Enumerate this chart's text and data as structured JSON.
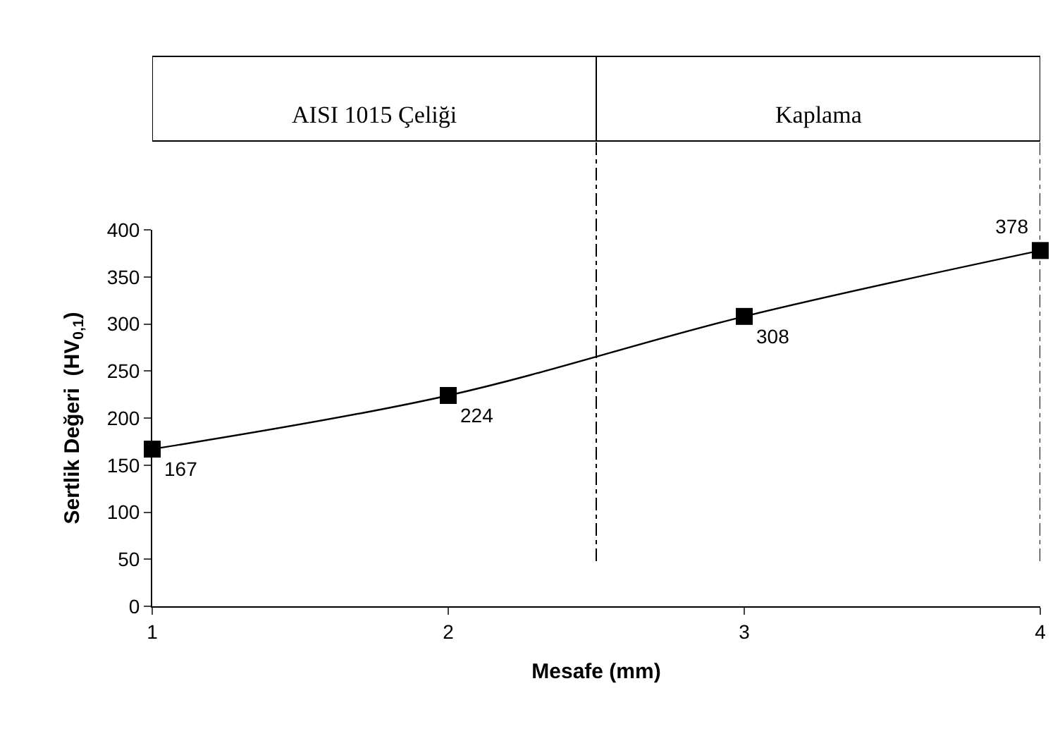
{
  "chart_data": {
    "type": "line",
    "xlabel": "Mesafe (mm)",
    "ylabel": "Sertlik Değeri  (HV$_{0,1}$)",
    "x": [
      1,
      2,
      3,
      4
    ],
    "series": [
      {
        "color": "#000000",
        "values": [
          167,
          224,
          308,
          378
        ]
      }
    ],
    "data_labels": true,
    "marker": "square",
    "line_style": "solid",
    "xlim": [
      1,
      4
    ],
    "xticks": [
      1,
      2,
      3,
      4
    ],
    "ylim": [
      0,
      400
    ],
    "yticks": [
      0,
      50,
      100,
      150,
      200,
      250,
      300,
      350,
      400
    ],
    "annotations": [
      "AISI 1015 Çeliği",
      "Kaplama"
    ],
    "ref_lines": [
      {
        "axis": "x",
        "value": 2.5,
        "line_style": "dashed"
      },
      {
        "axis": "x",
        "value": 4,
        "line_style": "dashed"
      }
    ]
  }
}
